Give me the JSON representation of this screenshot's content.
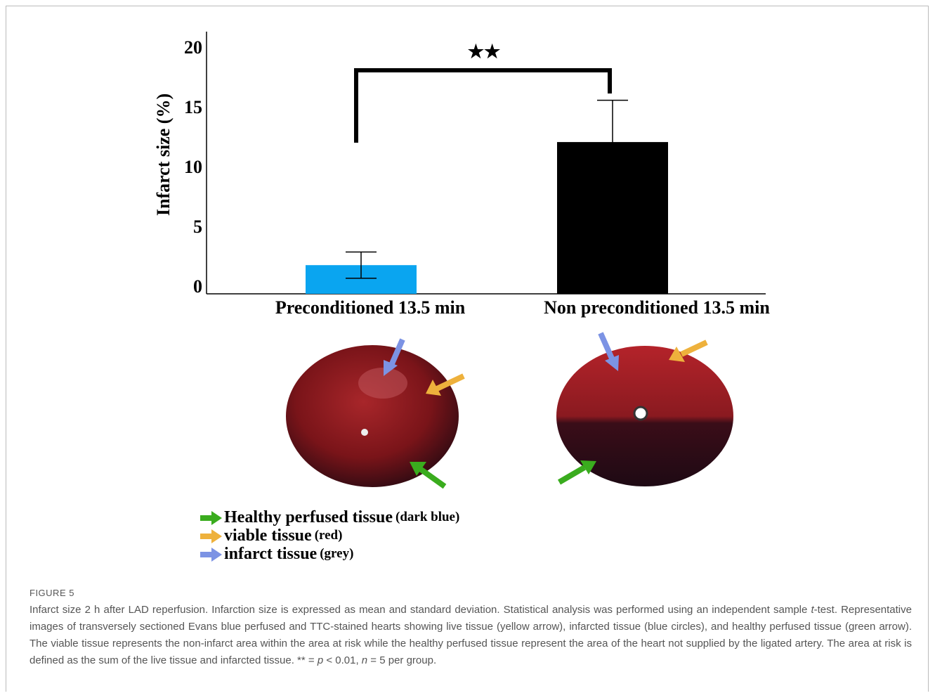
{
  "chart_data": {
    "type": "bar",
    "y_label": "Infarct size (%)",
    "categories": [
      "Preconditioned 13.5 min",
      "Non preconditioned 13.5 min"
    ],
    "values": [
      2.4,
      12.7
    ],
    "errors": [
      1.1,
      3.5
    ],
    "colors": [
      "#0aa5f0",
      "#000000"
    ],
    "ylim": [
      0,
      22
    ],
    "yticks": [
      0,
      5,
      10,
      15,
      20
    ],
    "significance": "★★"
  },
  "legend": [
    {
      "label": "Healthy perfused tissue",
      "note": "(dark blue)",
      "color": "#3aac1e"
    },
    {
      "label": "viable tissue",
      "note": "(red)",
      "color": "#eeb13c"
    },
    {
      "label": "infarct tissue",
      "note": "(grey)",
      "color": "#7c93e4"
    }
  ],
  "caption": {
    "label": "FIGURE 5",
    "parts": [
      "Infarct size 2 h after LAD reperfusion. Infarction size is expressed as mean and standard deviation. Statistical analysis was performed using an independent sample ",
      "t",
      "-test. Representative images of transversely sectioned Evans blue perfused and TTC-stained hearts showing live tissue (yellow arrow), infarcted tissue (blue circles), and healthy perfused tissue (green arrow). The viable tissue represents the non-infarct area within the area at risk while the healthy perfused tissue represent the area of the heart not supplied by the ligated artery. The area at risk is defined as the sum of the live tissue and infarcted tissue. ** = ",
      "p",
      " < 0.01, ",
      "n",
      " = 5 per group."
    ]
  }
}
